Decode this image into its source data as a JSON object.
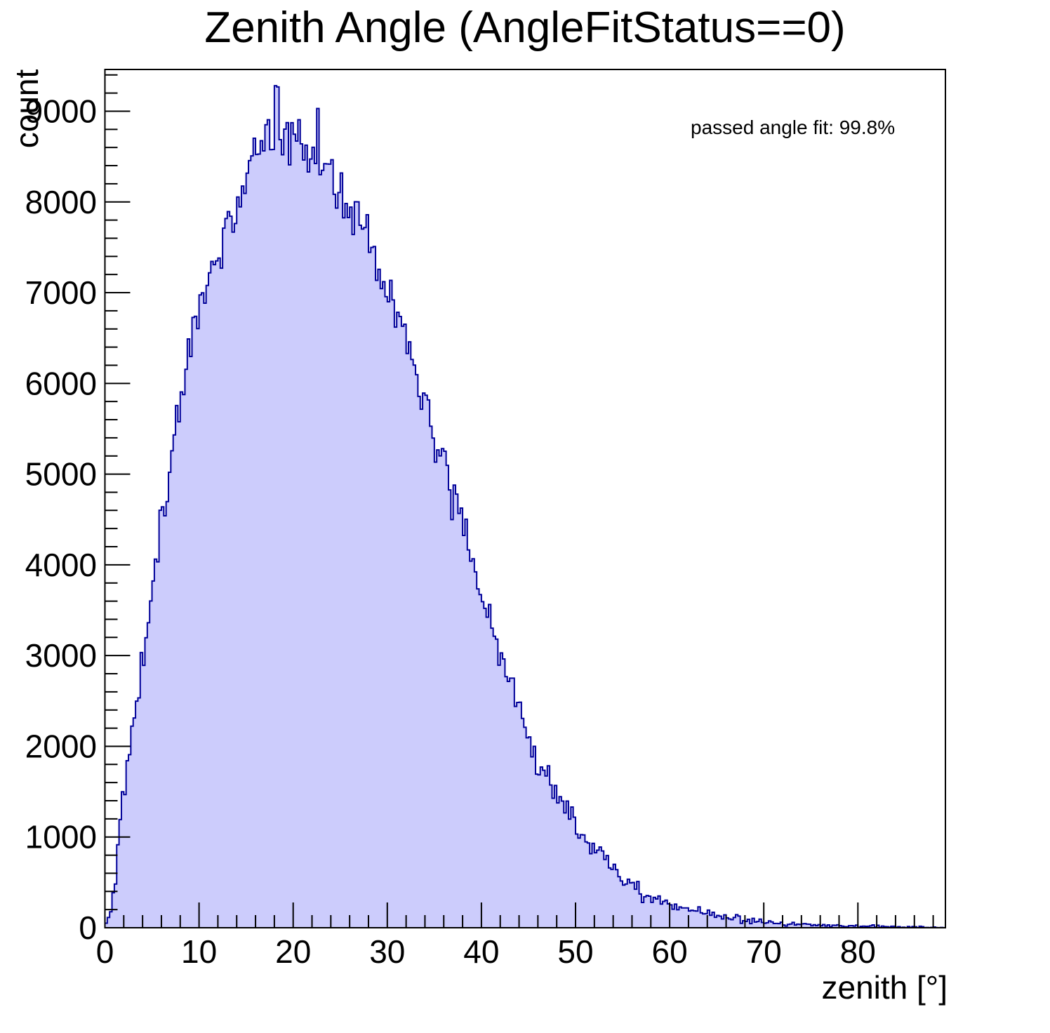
{
  "title": "Zenith Angle (AngleFitStatus==0)",
  "annotation": "passed angle fit: 99.8%",
  "chart_data": {
    "type": "bar",
    "subtype": "histogram",
    "title": "Zenith Angle (AngleFitStatus==0)",
    "xlabel": "zenith [°]",
    "ylabel": "count",
    "xlim": [
      0,
      89.3
    ],
    "ylim": [
      0,
      9460
    ],
    "x_major_ticks": [
      0,
      10,
      20,
      30,
      40,
      50,
      60,
      70,
      80
    ],
    "x_tick_labels": [
      "0",
      "10",
      "20",
      "30",
      "40",
      "50",
      "60",
      "70",
      "80"
    ],
    "x_minor_step": 2,
    "y_major_ticks": [
      0,
      1000,
      2000,
      3000,
      4000,
      5000,
      6000,
      7000,
      8000,
      9000
    ],
    "y_tick_labels": [
      "0",
      "1000",
      "2000",
      "3000",
      "4000",
      "5000",
      "6000",
      "7000",
      "8000",
      "9000"
    ],
    "y_minor_step": 200,
    "grid": false,
    "legend": "none",
    "annotation": "passed angle fit: 99.8%",
    "bin_width_deg": 0.25,
    "envelope_points": [
      [
        0,
        20
      ],
      [
        0.5,
        120
      ],
      [
        1,
        420
      ],
      [
        1.5,
        1000
      ],
      [
        2,
        1500
      ],
      [
        2.5,
        1900
      ],
      [
        3,
        2250
      ],
      [
        4,
        2950
      ],
      [
        5,
        3650
      ],
      [
        6,
        4400
      ],
      [
        7,
        5200
      ],
      [
        8,
        5950
      ],
      [
        9,
        6450
      ],
      [
        10,
        6800
      ],
      [
        11,
        7200
      ],
      [
        12,
        7450
      ],
      [
        13,
        7700
      ],
      [
        14,
        8000
      ],
      [
        15,
        8250
      ],
      [
        16,
        8450
      ],
      [
        17,
        8650
      ],
      [
        18,
        8800
      ],
      [
        19,
        8750
      ],
      [
        20,
        8800
      ],
      [
        21,
        8700
      ],
      [
        22,
        8600
      ],
      [
        23,
        8450
      ],
      [
        24,
        8300
      ],
      [
        25,
        8100
      ],
      [
        26,
        7950
      ],
      [
        27,
        7800
      ],
      [
        28,
        7600
      ],
      [
        29,
        7300
      ],
      [
        30,
        7100
      ],
      [
        31,
        6800
      ],
      [
        32,
        6450
      ],
      [
        33,
        6100
      ],
      [
        34,
        5800
      ],
      [
        35,
        5450
      ],
      [
        36,
        5150
      ],
      [
        37,
        4850
      ],
      [
        38,
        4450
      ],
      [
        39,
        4050
      ],
      [
        40,
        3650
      ],
      [
        41,
        3350
      ],
      [
        42,
        3100
      ],
      [
        43,
        2800
      ],
      [
        44,
        2400
      ],
      [
        45,
        2100
      ],
      [
        46,
        1850
      ],
      [
        47,
        1650
      ],
      [
        48,
        1450
      ],
      [
        49,
        1300
      ],
      [
        50,
        1150
      ],
      [
        51,
        1000
      ],
      [
        52,
        870
      ],
      [
        53,
        780
      ],
      [
        54,
        650
      ],
      [
        55,
        560
      ],
      [
        56,
        470
      ],
      [
        57,
        390
      ],
      [
        58,
        330
      ],
      [
        59,
        280
      ],
      [
        60,
        250
      ],
      [
        62,
        200
      ],
      [
        64,
        165
      ],
      [
        66,
        130
      ],
      [
        68,
        90
      ],
      [
        70,
        62
      ],
      [
        72,
        48
      ],
      [
        74,
        36
      ],
      [
        76,
        27
      ],
      [
        78,
        22
      ],
      [
        80,
        20
      ],
      [
        82,
        14
      ],
      [
        84,
        10
      ],
      [
        86,
        7
      ],
      [
        88,
        3
      ],
      [
        89.3,
        0
      ]
    ],
    "spikes": [
      [
        22.625,
        9030
      ]
    ],
    "peak_value": 9030,
    "noise": {
      "seed": 1234567,
      "sigma_scale": 2.0
    },
    "colors": {
      "fill": "#ccccfc",
      "line": "#000099",
      "frame": "#000000",
      "text": "#000000",
      "background": "#ffffff"
    }
  }
}
